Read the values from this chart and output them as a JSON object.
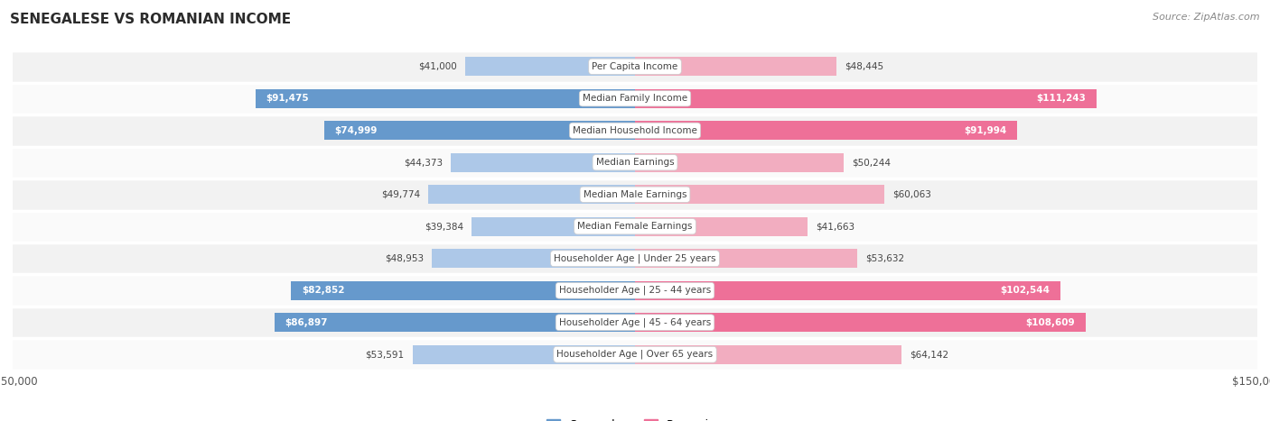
{
  "title": "SENEGALESE VS ROMANIAN INCOME",
  "source": "Source: ZipAtlas.com",
  "categories": [
    "Per Capita Income",
    "Median Family Income",
    "Median Household Income",
    "Median Earnings",
    "Median Male Earnings",
    "Median Female Earnings",
    "Householder Age | Under 25 years",
    "Householder Age | 25 - 44 years",
    "Householder Age | 45 - 64 years",
    "Householder Age | Over 65 years"
  ],
  "senegalese": [
    41000,
    91475,
    74999,
    44373,
    49774,
    39384,
    48953,
    82852,
    86897,
    53591
  ],
  "romanian": [
    48445,
    111243,
    91994,
    50244,
    60063,
    41663,
    53632,
    102544,
    108609,
    64142
  ],
  "senegalese_labels": [
    "$41,000",
    "$91,475",
    "$74,999",
    "$44,373",
    "$49,774",
    "$39,384",
    "$48,953",
    "$82,852",
    "$86,897",
    "$53,591"
  ],
  "romanian_labels": [
    "$48,445",
    "$111,243",
    "$91,994",
    "$50,244",
    "$60,063",
    "$41,663",
    "$53,632",
    "$102,544",
    "$108,609",
    "$64,142"
  ],
  "senegalese_color_light": "#adc8e8",
  "senegalese_color_dark": "#6699cc",
  "romanian_color_light": "#f2adc0",
  "romanian_color_dark": "#ee7098",
  "max_value": 150000,
  "row_bg_even": "#f2f2f2",
  "row_bg_odd": "#fafafa",
  "legend_senegalese": "Senegalese",
  "legend_romanian": "Romanian",
  "inside_label_threshold_sen": 65000,
  "inside_label_threshold_rom": 80000
}
